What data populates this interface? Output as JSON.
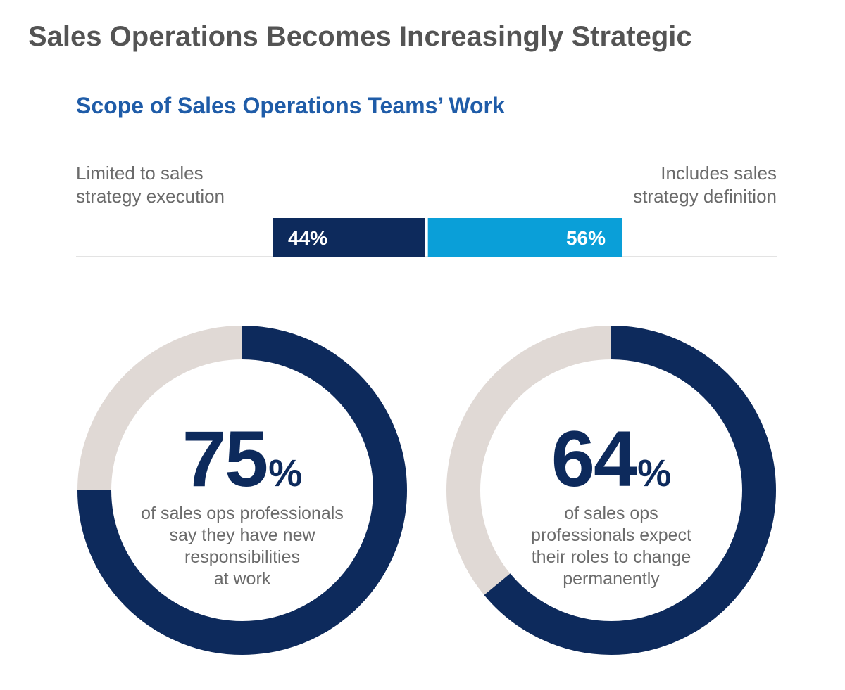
{
  "title": "Sales Operations Becomes Increasingly Strategic",
  "colors": {
    "dark_navy": "#0d2a5c",
    "bright_blue": "#0a9fd8",
    "ring_gray": "#e0d9d5",
    "title_gray": "#545454",
    "subtitle_blue": "#1f5ca8"
  },
  "chart_data": [
    {
      "type": "bar",
      "title": "Scope of Sales Operations Teams’ Work",
      "orientation": "horizontal-stacked",
      "left_label": [
        "Limited to sales",
        "strategy execution"
      ],
      "right_label": [
        "Includes sales",
        "strategy definition"
      ],
      "segments": [
        {
          "label": "44%",
          "value": 44,
          "color": "#0d2a5c"
        },
        {
          "label": "56%",
          "value": 56,
          "color": "#0a9fd8"
        }
      ]
    },
    {
      "type": "pie",
      "style": "donut",
      "value": 75,
      "number": "75",
      "unit": "%",
      "description": [
        "of sales ops professionals",
        "say they have new",
        "responsibilities",
        "at work"
      ]
    },
    {
      "type": "pie",
      "style": "donut",
      "value": 64,
      "number": "64",
      "unit": "%",
      "description": [
        "of sales ops",
        "professionals expect",
        "their roles to change",
        "permanently"
      ]
    }
  ]
}
